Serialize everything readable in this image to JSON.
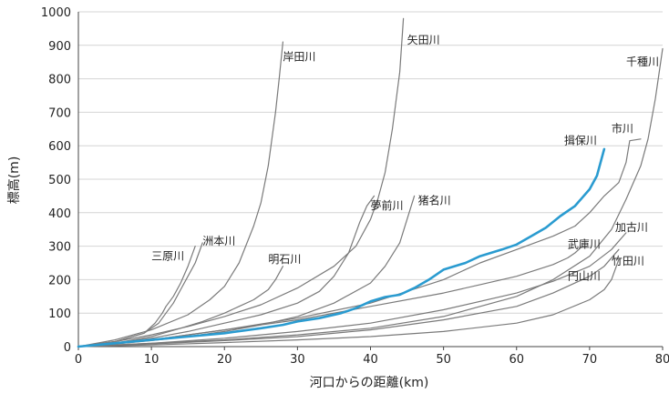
{
  "chart_data": {
    "type": "line",
    "xlabel": "河口からの距離(km)",
    "ylabel": "標高(m)",
    "xlim": [
      0,
      80
    ],
    "ylim": [
      0,
      1000
    ],
    "xticks": [
      0,
      10,
      20,
      30,
      40,
      50,
      60,
      70,
      80
    ],
    "yticks": [
      0,
      100,
      200,
      300,
      400,
      500,
      600,
      700,
      800,
      900,
      1000
    ],
    "grid": "horizontal",
    "colors": {
      "highlight": "#2a9bd0",
      "others": "#7a7a7a",
      "grid": "#d4d4d4"
    },
    "series": [
      {
        "name": "三原川",
        "highlight": false,
        "x": [
          0,
          5,
          9,
          10.5,
          11.5,
          12,
          12.5,
          13,
          14,
          15,
          16
        ],
        "y": [
          0,
          15,
          40,
          70,
          100,
          120,
          135,
          150,
          190,
          240,
          300
        ]
      },
      {
        "name": "洲本川",
        "highlight": false,
        "x": [
          0,
          5,
          9,
          11,
          12,
          13,
          14,
          15,
          16,
          16.5,
          17
        ],
        "y": [
          0,
          15,
          40,
          70,
          100,
          130,
          170,
          210,
          250,
          280,
          310
        ]
      },
      {
        "name": "岸田川",
        "highlight": false,
        "x": [
          0,
          5,
          10,
          15,
          18,
          20,
          22,
          24,
          25,
          26,
          27,
          27.5,
          28
        ],
        "y": [
          0,
          20,
          50,
          95,
          140,
          180,
          250,
          360,
          430,
          540,
          700,
          800,
          910
        ]
      },
      {
        "name": "明石川",
        "highlight": false,
        "x": [
          0,
          5,
          10,
          14,
          17,
          20,
          22,
          24,
          26,
          27,
          28
        ],
        "y": [
          0,
          10,
          30,
          55,
          75,
          100,
          120,
          140,
          170,
          200,
          240
        ]
      },
      {
        "name": "矢田川",
        "highlight": false,
        "x": [
          0,
          5,
          10,
          15,
          20,
          25,
          30,
          35,
          38,
          40,
          41,
          42,
          43,
          44,
          44.5
        ],
        "y": [
          0,
          15,
          35,
          60,
          90,
          125,
          175,
          240,
          300,
          380,
          440,
          520,
          650,
          820,
          980
        ]
      },
      {
        "name": "夢前川",
        "highlight": false,
        "x": [
          0,
          5,
          10,
          15,
          20,
          25,
          30,
          33,
          35,
          37,
          38.5,
          39.5,
          40.5
        ],
        "y": [
          0,
          10,
          25,
          45,
          70,
          95,
          130,
          165,
          210,
          280,
          370,
          420,
          450
        ]
      },
      {
        "name": "猪名川",
        "highlight": false,
        "x": [
          0,
          5,
          10,
          15,
          20,
          25,
          30,
          35,
          40,
          42,
          44,
          45,
          46
        ],
        "y": [
          0,
          8,
          18,
          30,
          45,
          65,
          90,
          130,
          190,
          240,
          310,
          380,
          450
        ]
      },
      {
        "name": "揖保川",
        "highlight": true,
        "x": [
          0,
          5,
          10,
          15,
          20,
          25,
          28,
          30,
          33,
          36,
          38,
          40,
          42,
          44,
          46,
          48,
          50,
          53,
          55,
          58,
          60,
          62,
          64,
          66,
          68,
          70,
          71,
          72
        ],
        "y": [
          0,
          10,
          20,
          30,
          40,
          55,
          65,
          75,
          85,
          100,
          115,
          135,
          148,
          155,
          175,
          200,
          230,
          250,
          270,
          290,
          305,
          330,
          355,
          390,
          420,
          470,
          510,
          590
        ]
      },
      {
        "name": "市川",
        "highlight": false,
        "x": [
          0,
          10,
          20,
          30,
          40,
          50,
          55,
          60,
          65,
          68,
          70,
          72,
          74,
          75,
          75.5,
          77
        ],
        "y": [
          0,
          20,
          50,
          85,
          130,
          200,
          250,
          290,
          330,
          360,
          400,
          450,
          490,
          550,
          615,
          620
        ]
      },
      {
        "name": "千種川",
        "highlight": false,
        "x": [
          0,
          10,
          20,
          30,
          40,
          50,
          60,
          65,
          70,
          73,
          75,
          77,
          78,
          79,
          80
        ],
        "y": [
          0,
          10,
          20,
          35,
          55,
          90,
          150,
          200,
          270,
          350,
          440,
          540,
          620,
          740,
          890
        ]
      },
      {
        "name": "加古川",
        "highlight": false,
        "x": [
          0,
          10,
          20,
          30,
          40,
          50,
          60,
          65,
          70,
          73,
          75
        ],
        "y": [
          0,
          10,
          25,
          45,
          70,
          110,
          160,
          195,
          240,
          290,
          340
        ]
      },
      {
        "name": "武庫川",
        "highlight": false,
        "x": [
          0,
          10,
          20,
          30,
          40,
          50,
          55,
          60,
          65,
          67,
          68,
          69
        ],
        "y": [
          0,
          20,
          50,
          80,
          120,
          160,
          185,
          210,
          245,
          265,
          280,
          300
        ]
      },
      {
        "name": "竹田川",
        "highlight": false,
        "x": [
          0,
          10,
          20,
          30,
          40,
          50,
          60,
          65,
          70,
          72,
          74
        ],
        "y": [
          0,
          8,
          18,
          30,
          50,
          80,
          120,
          160,
          210,
          240,
          290
        ]
      },
      {
        "name": "円山川",
        "highlight": false,
        "x": [
          0,
          10,
          20,
          30,
          40,
          50,
          60,
          65,
          70,
          72,
          73,
          74
        ],
        "y": [
          0,
          5,
          12,
          20,
          30,
          45,
          70,
          95,
          140,
          170,
          200,
          260
        ]
      }
    ],
    "labels": [
      {
        "text": "岸田川",
        "x": 28,
        "y": 855
      },
      {
        "text": "矢田川",
        "x": 45,
        "y": 905
      },
      {
        "text": "千種川",
        "x": 75,
        "y": 840
      },
      {
        "text": "揖保川",
        "x": 66.5,
        "y": 605
      },
      {
        "text": "市川",
        "x": 73,
        "y": 640
      },
      {
        "text": "夢前川",
        "x": 40,
        "y": 410
      },
      {
        "text": "猪名川",
        "x": 46.5,
        "y": 425
      },
      {
        "text": "洲本川",
        "x": 17,
        "y": 305
      },
      {
        "text": "三原川",
        "x": 10,
        "y": 260
      },
      {
        "text": "明石川",
        "x": 26,
        "y": 250
      },
      {
        "text": "加古川",
        "x": 73.5,
        "y": 345
      },
      {
        "text": "武庫川",
        "x": 67,
        "y": 295
      },
      {
        "text": "竹田川",
        "x": 73,
        "y": 245
      },
      {
        "text": "円山川",
        "x": 67,
        "y": 200
      }
    ]
  }
}
